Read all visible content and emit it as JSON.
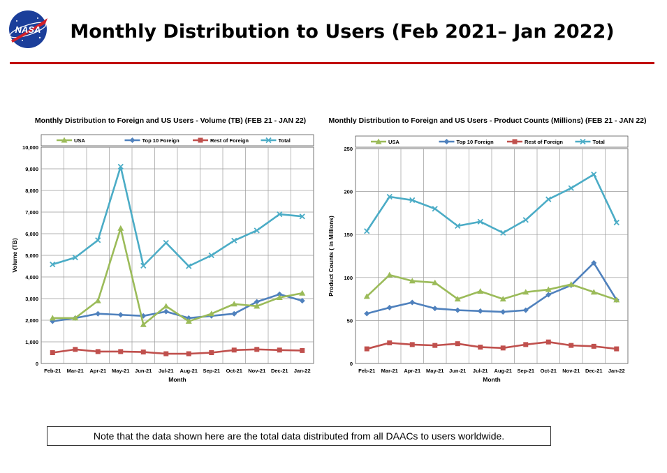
{
  "page": {
    "title": "Monthly Distribution to Users (Feb 2021– Jan 2022)",
    "note": "Note that the data shown here are the total data distributed from all DAACs to users worldwide.",
    "accent_color": "#c00000"
  },
  "logo": {
    "text": "NASA",
    "colors": {
      "globe": "#1b3e9a",
      "swoosh": "#d0202a"
    }
  },
  "chart_data": [
    {
      "type": "line",
      "title": "Monthly Distribution to Foreign and US Users - Volume  (TB) (FEB 21 - JAN 22)",
      "xlabel": "Month",
      "ylabel": "Volume (TB)",
      "categories": [
        "Feb-21",
        "Mar-21",
        "Apr-21",
        "May-21",
        "Jun-21",
        "Jul-21",
        "Aug-21",
        "Sep-21",
        "Oct-21",
        "Nov-21",
        "Dec-21",
        "Jan-22"
      ],
      "ylim": [
        0,
        10000
      ],
      "yticks": [
        0,
        1000,
        2000,
        3000,
        4000,
        5000,
        6000,
        7000,
        8000,
        9000,
        10000
      ],
      "ytick_labels": [
        "0",
        "1,000",
        "2,000",
        "3,000",
        "4,000",
        "5,000",
        "6,000",
        "7,000",
        "8,000",
        "9,000",
        "10,000"
      ],
      "grid": true,
      "legend": "top",
      "series": [
        {
          "name": "USA",
          "color": "#9bbb59",
          "marker": "triangle",
          "values": [
            2100,
            2100,
            2900,
            6250,
            1800,
            2650,
            1950,
            2300,
            2750,
            2650,
            3050,
            3250
          ]
        },
        {
          "name": "Top 10 Foreign",
          "color": "#4f81bd",
          "marker": "diamond",
          "values": [
            1950,
            2100,
            2300,
            2250,
            2200,
            2400,
            2100,
            2200,
            2300,
            2850,
            3200,
            2900
          ]
        },
        {
          "name": "Rest of Foreign",
          "color": "#c0504d",
          "marker": "square",
          "values": [
            500,
            650,
            550,
            550,
            530,
            450,
            450,
            500,
            620,
            650,
            620,
            600
          ]
        },
        {
          "name": "Total",
          "color": "#4bacc6",
          "marker": "x",
          "values": [
            4580,
            4900,
            5700,
            9100,
            4520,
            5580,
            4500,
            5000,
            5680,
            6150,
            6900,
            6800
          ]
        }
      ]
    },
    {
      "type": "line",
      "title": "Monthly Distribution to Foreign and US Users - Product Counts (Millions) (FEB 21 - JAN 22)",
      "xlabel": "Month",
      "ylabel": "Product Counts ( in Millions)",
      "categories": [
        "Feb-21",
        "Mar-21",
        "Apr-21",
        "May-21",
        "Jun-21",
        "Jul-21",
        "Aug-21",
        "Sep-21",
        "Oct-21",
        "Nov-21",
        "Dec-21",
        "Jan-22"
      ],
      "ylim": [
        0,
        250
      ],
      "yticks": [
        0,
        50,
        100,
        150,
        200,
        250
      ],
      "ytick_labels": [
        "0",
        "50",
        "100",
        "150",
        "200",
        "250"
      ],
      "grid": true,
      "legend": "top",
      "series": [
        {
          "name": "USA",
          "color": "#9bbb59",
          "marker": "triangle",
          "values": [
            78,
            103,
            96,
            94,
            75,
            84,
            75,
            83,
            86,
            92,
            83,
            74
          ]
        },
        {
          "name": "Top 10 Foreign",
          "color": "#4f81bd",
          "marker": "diamond",
          "values": [
            58,
            65,
            71,
            64,
            62,
            61,
            60,
            62,
            80,
            91,
            117,
            74
          ]
        },
        {
          "name": "Rest of Foreign",
          "color": "#c0504d",
          "marker": "square",
          "values": [
            17,
            24,
            22,
            21,
            23,
            19,
            18,
            22,
            25,
            21,
            20,
            17
          ]
        },
        {
          "name": "Total",
          "color": "#4bacc6",
          "marker": "x",
          "values": [
            154,
            194,
            190,
            180,
            160,
            165,
            152,
            167,
            191,
            204,
            220,
            164
          ]
        }
      ]
    }
  ]
}
